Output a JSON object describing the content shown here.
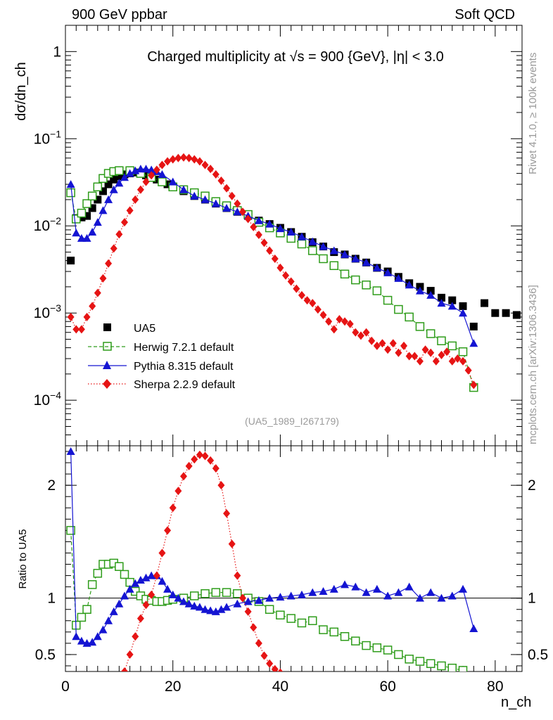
{
  "header": {
    "left": "900 GeV ppbar",
    "right": "Soft QCD",
    "side_top": "Rivet 4.1.0, ≥ 100k events",
    "side_bottom": "mcplots.cern.ch [arXiv:1306.3436]"
  },
  "chart_data": [
    {
      "type": "scatter",
      "title": "Charged multiplicity at √s = 900 {GeV}, |η| < 3.0",
      "reference": "(UA5_1989_I267179)",
      "xlabel": "n_ch",
      "ylabel": "dσ/dn_ch",
      "xlim": [
        0,
        85
      ],
      "ylim": [
        3e-05,
        2.0
      ],
      "yscale": "log",
      "y_tick_labels": [
        "1",
        "10^-1",
        "10^-2",
        "10^-3",
        "10^-4"
      ],
      "legend": [
        "UA5",
        "Herwig 7.2.1 default",
        "Pythia 8.315 default",
        "Sherpa 2.2.9 default"
      ],
      "series": [
        {
          "name": "UA5",
          "color": "#000000",
          "marker": "square",
          "x": [
            1,
            2,
            3,
            4,
            5,
            6,
            7,
            8,
            9,
            10,
            11,
            12,
            13,
            14,
            15,
            16,
            17,
            18,
            19,
            20,
            22,
            24,
            26,
            28,
            30,
            32,
            34,
            36,
            38,
            40,
            42,
            44,
            46,
            48,
            50,
            52,
            54,
            56,
            58,
            60,
            62,
            64,
            66,
            68,
            70,
            72,
            74,
            76,
            78,
            80,
            82,
            84
          ],
          "y": [
            0.004,
            0.0123,
            0.0125,
            0.013,
            0.016,
            0.02,
            0.025,
            0.03,
            0.034,
            0.037,
            0.039,
            0.04,
            0.041,
            0.04,
            0.038,
            0.036,
            0.034,
            0.032,
            0.03,
            0.028,
            0.025,
            0.022,
            0.02,
            0.018,
            0.016,
            0.0145,
            0.013,
            0.0115,
            0.0105,
            0.0095,
            0.0085,
            0.0075,
            0.0065,
            0.0058,
            0.005,
            0.0047,
            0.0042,
            0.0038,
            0.0033,
            0.003,
            0.0026,
            0.0022,
            0.002,
            0.0018,
            0.0015,
            0.0014,
            0.0012,
            0.0007,
            0.0013,
            0.001,
            0.001,
            0.00095
          ]
        },
        {
          "name": "Herwig 7.2.1 default",
          "color": "#2e9c1a",
          "marker": "open-square",
          "x": [
            1,
            2,
            3,
            4,
            5,
            6,
            7,
            8,
            9,
            10,
            12,
            14,
            16,
            18,
            20,
            22,
            24,
            26,
            28,
            30,
            32,
            34,
            36,
            38,
            40,
            42,
            44,
            46,
            48,
            50,
            52,
            54,
            56,
            58,
            60,
            62,
            64,
            66,
            68,
            70,
            72,
            74,
            76
          ],
          "y": [
            0.024,
            0.012,
            0.014,
            0.018,
            0.022,
            0.028,
            0.035,
            0.04,
            0.042,
            0.043,
            0.043,
            0.04,
            0.036,
            0.032,
            0.028,
            0.026,
            0.024,
            0.022,
            0.019,
            0.017,
            0.015,
            0.0135,
            0.011,
            0.0095,
            0.0083,
            0.0072,
            0.0062,
            0.0052,
            0.0042,
            0.0035,
            0.0028,
            0.0024,
            0.0021,
            0.0018,
            0.0014,
            0.0011,
            0.0009,
            0.0007,
            0.00058,
            0.00048,
            0.00042,
            0.00036,
            0.00014
          ]
        },
        {
          "name": "Pythia 8.315 default",
          "color": "#1414d2",
          "marker": "triangle",
          "x": [
            1,
            2,
            3,
            4,
            5,
            6,
            7,
            8,
            9,
            10,
            11,
            12,
            13,
            14,
            15,
            16,
            17,
            18,
            20,
            22,
            24,
            26,
            28,
            30,
            32,
            34,
            36,
            38,
            40,
            42,
            44,
            46,
            48,
            50,
            52,
            54,
            56,
            58,
            60,
            62,
            64,
            66,
            68,
            70,
            72,
            74,
            76
          ],
          "y": [
            0.03,
            0.0083,
            0.0072,
            0.0072,
            0.0085,
            0.011,
            0.015,
            0.02,
            0.026,
            0.031,
            0.036,
            0.04,
            0.043,
            0.045,
            0.045,
            0.044,
            0.042,
            0.039,
            0.032,
            0.026,
            0.022,
            0.02,
            0.018,
            0.016,
            0.0145,
            0.013,
            0.0115,
            0.0105,
            0.0093,
            0.0085,
            0.0075,
            0.0066,
            0.0058,
            0.0052,
            0.0047,
            0.0042,
            0.0038,
            0.0033,
            0.0029,
            0.0025,
            0.0021,
            0.0018,
            0.0016,
            0.0013,
            0.0012,
            0.001,
            0.00045
          ]
        },
        {
          "name": "Sherpa 2.2.9 default",
          "color": "#e61414",
          "marker": "diamond",
          "x": [
            1,
            2,
            3,
            4,
            5,
            6,
            7,
            8,
            9,
            10,
            11,
            12,
            13,
            14,
            15,
            16,
            17,
            18,
            19,
            20,
            21,
            22,
            23,
            24,
            25,
            26,
            27,
            28,
            29,
            30,
            31,
            32,
            33,
            34,
            35,
            36,
            37,
            38,
            39,
            40,
            41,
            42,
            43,
            44,
            45,
            46,
            47,
            48,
            49,
            50,
            51,
            52,
            53,
            54,
            55,
            56,
            57,
            58,
            59,
            60,
            61,
            62,
            63,
            64,
            65,
            66,
            67,
            68,
            69,
            70,
            71,
            72,
            73,
            74,
            75,
            76
          ],
          "y": [
            0.0009,
            0.00065,
            0.00065,
            0.0009,
            0.0012,
            0.0017,
            0.0025,
            0.0037,
            0.0055,
            0.008,
            0.011,
            0.015,
            0.02,
            0.026,
            0.032,
            0.038,
            0.044,
            0.05,
            0.055,
            0.058,
            0.06,
            0.061,
            0.06,
            0.058,
            0.055,
            0.05,
            0.045,
            0.039,
            0.033,
            0.027,
            0.022,
            0.018,
            0.0145,
            0.012,
            0.0097,
            0.0079,
            0.0064,
            0.0052,
            0.0042,
            0.0033,
            0.0027,
            0.0023,
            0.0019,
            0.0016,
            0.0014,
            0.0013,
            0.0011,
            0.00095,
            0.0008,
            0.00065,
            0.00085,
            0.0008,
            0.00075,
            0.0006,
            0.00055,
            0.0006,
            0.00048,
            0.00042,
            0.00045,
            0.00038,
            0.00045,
            0.00035,
            0.00042,
            0.00032,
            0.00032,
            0.00028,
            0.00038,
            0.00035,
            0.00028,
            0.00033,
            0.00036,
            0.00028,
            0.0003,
            0.00028,
            0.00022,
            0.00015
          ]
        }
      ]
    },
    {
      "type": "line",
      "ylabel": "Ratio to UA5",
      "xlabel": "n_ch",
      "xlim": [
        0,
        85
      ],
      "ylim": [
        0.35,
        2.35
      ],
      "y_tick_labels": [
        "0.5",
        "1",
        "2"
      ],
      "x_tick_labels": [
        "0",
        "20",
        "40",
        "60",
        "80"
      ],
      "reference_line": 1,
      "series": [
        {
          "name": "Herwig 7.2.1 default",
          "color": "#2e9c1a",
          "x": [
            1,
            2,
            3,
            4,
            5,
            6,
            7,
            8,
            9,
            10,
            11,
            12,
            13,
            14,
            15,
            16,
            17,
            18,
            19,
            20,
            22,
            24,
            26,
            28,
            30,
            32,
            34,
            36,
            38,
            40,
            42,
            44,
            46,
            48,
            50,
            52,
            54,
            56,
            58,
            60,
            62,
            64,
            66,
            68,
            70,
            72,
            74
          ],
          "y": [
            1.6,
            0.76,
            0.83,
            0.9,
            1.12,
            1.22,
            1.3,
            1.3,
            1.31,
            1.28,
            1.21,
            1.14,
            1.06,
            1.02,
            0.99,
            0.98,
            0.97,
            0.97,
            0.98,
            0.99,
            1.0,
            1.02,
            1.04,
            1.05,
            1.05,
            1.04,
            1.0,
            0.97,
            0.9,
            0.85,
            0.82,
            0.78,
            0.8,
            0.72,
            0.7,
            0.66,
            0.62,
            0.58,
            0.56,
            0.54,
            0.5,
            0.46,
            0.44,
            0.42,
            0.4,
            0.38,
            0.36
          ]
        },
        {
          "name": "Pythia 8.315 default",
          "color": "#1414d2",
          "x": [
            1,
            2,
            3,
            4,
            5,
            6,
            7,
            8,
            9,
            10,
            11,
            12,
            13,
            14,
            15,
            16,
            17,
            18,
            19,
            20,
            21,
            22,
            23,
            24,
            25,
            26,
            27,
            28,
            29,
            30,
            32,
            34,
            36,
            38,
            40,
            42,
            44,
            46,
            48,
            50,
            52,
            54,
            56,
            58,
            60,
            62,
            64,
            66,
            68,
            70,
            72,
            74,
            76
          ],
          "y": [
            2.3,
            0.66,
            0.62,
            0.6,
            0.61,
            0.66,
            0.72,
            0.8,
            0.88,
            0.95,
            1.02,
            1.08,
            1.13,
            1.16,
            1.18,
            1.2,
            1.2,
            1.15,
            1.08,
            1.03,
            1.0,
            0.97,
            0.95,
            0.93,
            0.92,
            0.9,
            0.89,
            0.88,
            0.9,
            0.92,
            0.95,
            0.97,
            0.98,
            1.0,
            1.01,
            1.02,
            1.03,
            1.05,
            1.06,
            1.08,
            1.12,
            1.1,
            1.05,
            1.08,
            1.02,
            1.05,
            1.1,
            1.0,
            1.05,
            1.0,
            1.02,
            1.08,
            0.73
          ]
        },
        {
          "name": "Sherpa 2.2.9 default",
          "color": "#e61414",
          "x": [
            11,
            12,
            13,
            14,
            15,
            16,
            17,
            18,
            19,
            20,
            21,
            22,
            23,
            24,
            25,
            26,
            27,
            28,
            29,
            30,
            31,
            32,
            33,
            34,
            35,
            36,
            37,
            38,
            39,
            40
          ],
          "y": [
            0.35,
            0.5,
            0.66,
            0.82,
            0.94,
            1.03,
            1.2,
            1.4,
            1.6,
            1.8,
            1.95,
            2.08,
            2.17,
            2.23,
            2.27,
            2.26,
            2.22,
            2.15,
            2.0,
            1.75,
            1.48,
            1.2,
            1.0,
            0.88,
            0.74,
            0.6,
            0.49,
            0.42,
            0.37,
            0.34
          ]
        }
      ]
    }
  ]
}
